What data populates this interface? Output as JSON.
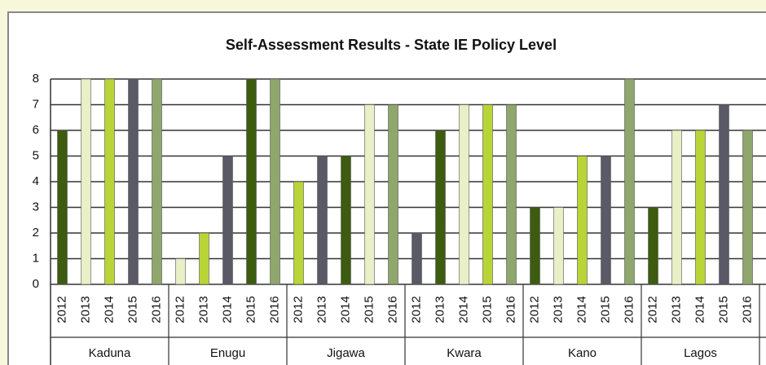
{
  "chart_data": {
    "type": "grouped-bar",
    "title": "Self-Assessment Results - State IE Policy Level",
    "groups": [
      {
        "name": "Kaduna",
        "categories": [
          2012,
          2013,
          2014,
          2015,
          2016
        ],
        "values": [
          6,
          8,
          8,
          8,
          8
        ],
        "colors": [
          "#3d5c10",
          "#e9efc6",
          "#b9d436",
          "#5a5a66",
          "#8fa66d"
        ]
      },
      {
        "name": "Enugu",
        "categories": [
          2012,
          2013,
          2014,
          2015,
          2016
        ],
        "values": [
          1,
          2,
          5,
          8,
          8
        ],
        "colors": [
          "#e9efc6",
          "#b9d436",
          "#5a5a66",
          "#3d5c10",
          "#8fa66d"
        ]
      },
      {
        "name": "Jigawa",
        "categories": [
          2012,
          2013,
          2014,
          2015,
          2016
        ],
        "values": [
          4,
          5,
          5,
          7,
          7
        ],
        "colors": [
          "#b9d436",
          "#5a5a66",
          "#3d5c10",
          "#e9efc6",
          "#8fa66d"
        ]
      },
      {
        "name": "Kwara",
        "categories": [
          2012,
          2013,
          2014,
          2015,
          2016
        ],
        "values": [
          2,
          6,
          7,
          7,
          7
        ],
        "colors": [
          "#5a5a66",
          "#3d5c10",
          "#e9efc6",
          "#b9d436",
          "#8fa66d"
        ]
      },
      {
        "name": "Kano",
        "categories": [
          2012,
          2013,
          2014,
          2015,
          2016
        ],
        "values": [
          3,
          3,
          5,
          5,
          8
        ],
        "colors": [
          "#3d5c10",
          "#e9efc6",
          "#b9d436",
          "#5a5a66",
          "#8fa66d"
        ]
      },
      {
        "name": "Lagos",
        "categories": [
          2012,
          2013,
          2014,
          2015,
          2016
        ],
        "values": [
          3,
          6,
          6,
          7,
          6
        ],
        "colors": [
          "#3d5c10",
          "#e9efc6",
          "#b9d436",
          "#5a5a66",
          "#8fa66d"
        ]
      }
    ],
    "ylim": [
      0,
      8
    ],
    "yticks": [
      0,
      1,
      2,
      3,
      4,
      5,
      6,
      7,
      8
    ],
    "grid": true
  }
}
